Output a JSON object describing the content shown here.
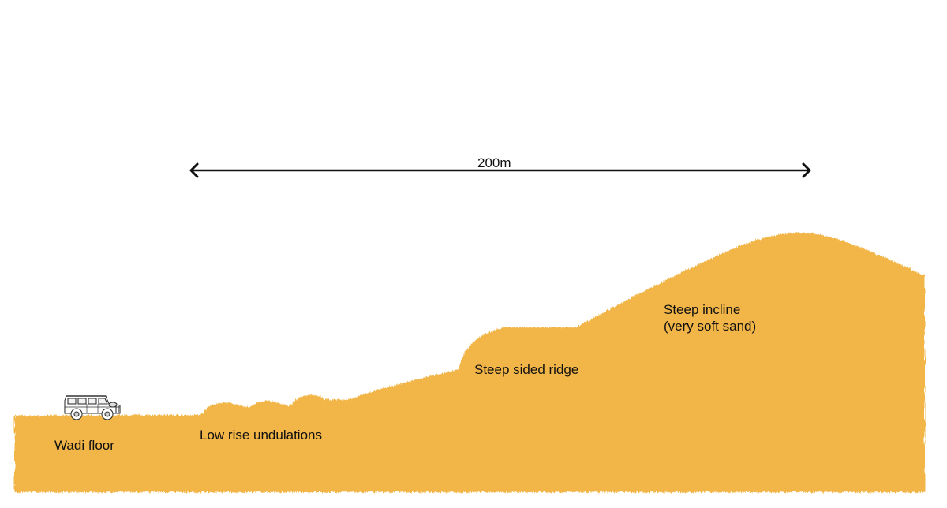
{
  "diagram": {
    "sand_color": "#F2B546",
    "arrow_color": "#111111",
    "distance_label": "200m",
    "terrain_labels": {
      "wadi_floor": "Wadi floor",
      "low_rise": "Low rise undulations",
      "ridge": "Steep sided ridge",
      "incline_line1": "Steep incline",
      "incline_line2": "(very soft sand)"
    },
    "vehicle_icon": "land-rover-icon"
  }
}
